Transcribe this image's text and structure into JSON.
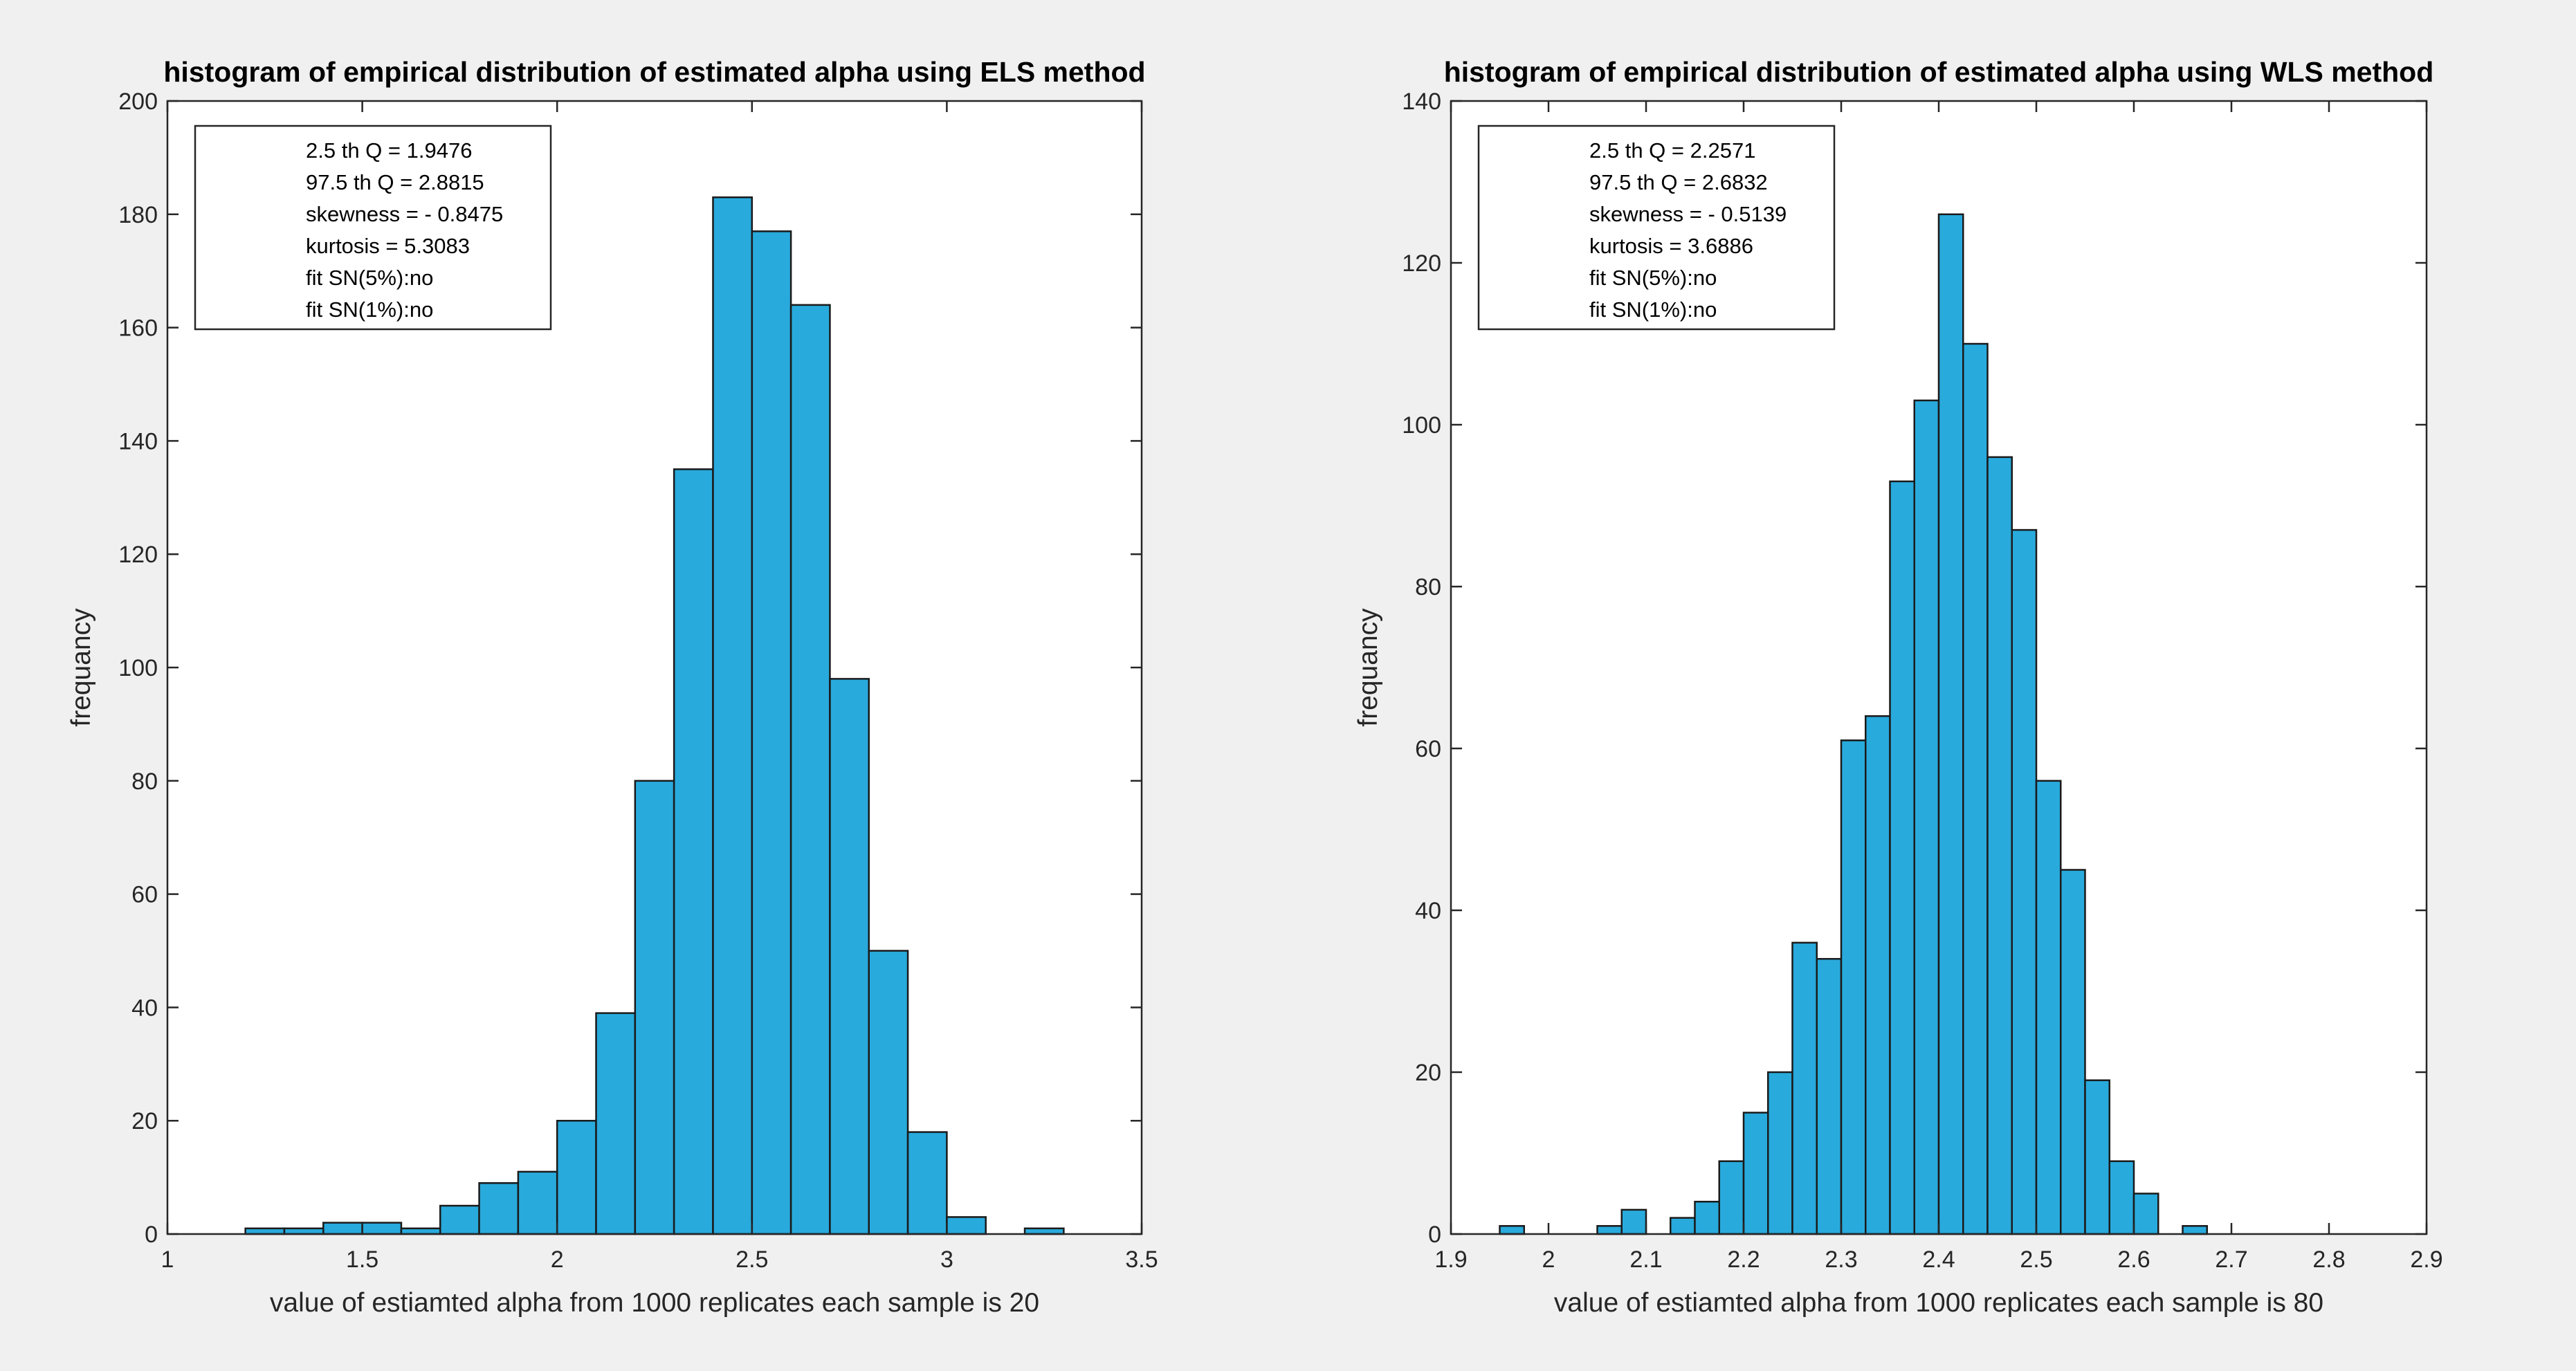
{
  "figure": {
    "background": "#f0f0f0",
    "bar_color": "#29aadc",
    "edge_color": "#1a1a1a"
  },
  "chart_data": [
    {
      "type": "bar",
      "title": "histogram of empirical distribution of estimated alpha using ELS method",
      "xlabel": "value of estiamted alpha from 1000 replicates each sample is 20",
      "ylabel": "frequancy",
      "xlim": [
        1,
        3.5
      ],
      "ylim": [
        0,
        200
      ],
      "xticks": [
        1,
        1.5,
        2,
        2.5,
        3,
        3.5
      ],
      "xtick_labels": [
        "1",
        "1.5",
        "2",
        "2.5",
        "3",
        "3.5"
      ],
      "yticks": [
        0,
        20,
        40,
        60,
        80,
        100,
        120,
        140,
        160,
        180,
        200
      ],
      "ytick_labels": [
        "0",
        "20",
        "40",
        "60",
        "80",
        "100",
        "120",
        "140",
        "160",
        "180",
        "200"
      ],
      "bin_start": 1.2,
      "bin_width": 0.1,
      "values": [
        1,
        1,
        2,
        2,
        1,
        5,
        9,
        11,
        20,
        39,
        80,
        135,
        183,
        177,
        164,
        98,
        50,
        18,
        3,
        0,
        1
      ],
      "legend_lines": [
        "2.5 th Q = 1.9476",
        "97.5 th Q = 2.8815",
        "skewness = - 0.8475",
        "kurtosis = 5.3083",
        "fit SN(5%):no",
        "fit SN(1%):no"
      ],
      "legend_position": "top-left"
    },
    {
      "type": "bar",
      "title": "histogram of empirical distribution of estimated alpha using WLS method",
      "xlabel": "value of estiamted alpha from 1000 replicates each sample is 80",
      "ylabel": "frequancy",
      "xlim": [
        1.9,
        2.9
      ],
      "ylim": [
        0,
        140
      ],
      "xticks": [
        1.9,
        2,
        2.1,
        2.2,
        2.3,
        2.4,
        2.5,
        2.6,
        2.7,
        2.8,
        2.9
      ],
      "xtick_labels": [
        "1.9",
        "2",
        "2.1",
        "2.2",
        "2.3",
        "2.4",
        "2.5",
        "2.6",
        "2.7",
        "2.8",
        "2.9"
      ],
      "yticks": [
        0,
        20,
        40,
        60,
        80,
        100,
        120,
        140
      ],
      "ytick_labels": [
        "0",
        "20",
        "40",
        "60",
        "80",
        "100",
        "120",
        "140"
      ],
      "bin_start": 1.95,
      "bin_width": 0.025,
      "values": [
        1,
        0,
        0,
        0,
        1,
        3,
        0,
        2,
        4,
        9,
        15,
        20,
        36,
        34,
        61,
        64,
        93,
        103,
        126,
        110,
        96,
        87,
        56,
        45,
        19,
        9,
        5,
        0,
        1
      ],
      "legend_lines": [
        "2.5 th Q = 2.2571",
        "97.5 th Q = 2.6832",
        "skewness = - 0.5139",
        "kurtosis = 3.6886",
        "fit SN(5%):no",
        "fit SN(1%):no"
      ],
      "legend_position": "top-left"
    }
  ]
}
